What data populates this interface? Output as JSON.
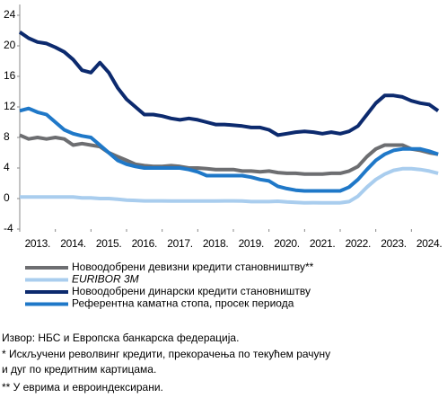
{
  "chart_data": {
    "type": "line",
    "x": [
      2013,
      2013.25,
      2013.5,
      2013.75,
      2014,
      2014.25,
      2014.5,
      2014.75,
      2015,
      2015.25,
      2015.5,
      2015.75,
      2016,
      2016.25,
      2016.5,
      2016.75,
      2017,
      2017.25,
      2017.5,
      2017.75,
      2018,
      2018.25,
      2018.5,
      2018.75,
      2019,
      2019.25,
      2019.5,
      2019.75,
      2020,
      2020.25,
      2020.5,
      2020.75,
      2021,
      2021.25,
      2021.5,
      2021.75,
      2022,
      2022.25,
      2022.5,
      2022.75,
      2023,
      2023.25,
      2023.5,
      2023.75,
      2024,
      2024.25,
      2024.5,
      2024.75
    ],
    "series": [
      {
        "name": "Новоодобрени девизни кредити становништву**",
        "color": "#6d6e71",
        "values": [
          8.3,
          7.8,
          8.0,
          7.8,
          8.0,
          7.8,
          7.0,
          7.2,
          7.0,
          6.8,
          6.0,
          5.5,
          5.0,
          4.5,
          4.3,
          4.2,
          4.2,
          4.3,
          4.2,
          4.0,
          4.0,
          3.9,
          3.8,
          3.8,
          3.8,
          3.6,
          3.6,
          3.5,
          3.6,
          3.4,
          3.3,
          3.3,
          3.2,
          3.2,
          3.2,
          3.3,
          3.3,
          3.6,
          4.2,
          5.5,
          6.5,
          7.0,
          7.0,
          7.0,
          6.5,
          6.3,
          6.0,
          5.8
        ]
      },
      {
        "name": "EURIBOR 3M",
        "color": "#a9cdee",
        "italic": true,
        "values": [
          0.2,
          0.2,
          0.2,
          0.2,
          0.2,
          0.2,
          0.2,
          0.1,
          0.1,
          0.0,
          0.0,
          -0.1,
          -0.2,
          -0.25,
          -0.3,
          -0.3,
          -0.3,
          -0.33,
          -0.33,
          -0.33,
          -0.33,
          -0.32,
          -0.32,
          -0.31,
          -0.31,
          -0.32,
          -0.4,
          -0.4,
          -0.4,
          -0.35,
          -0.45,
          -0.5,
          -0.55,
          -0.54,
          -0.55,
          -0.56,
          -0.55,
          -0.4,
          0.3,
          1.5,
          2.5,
          3.2,
          3.7,
          3.9,
          3.9,
          3.8,
          3.6,
          3.3
        ]
      },
      {
        "name": "Новоодобрени динарски кредити становништву",
        "color": "#0c2a6e",
        "values": [
          21.8,
          21.0,
          20.5,
          20.3,
          19.8,
          19.2,
          18.2,
          16.8,
          16.5,
          17.8,
          16.5,
          14.5,
          13.0,
          12.0,
          11.0,
          11.0,
          10.8,
          10.5,
          10.3,
          10.5,
          10.3,
          10.0,
          9.7,
          9.7,
          9.6,
          9.5,
          9.3,
          9.3,
          9.0,
          8.3,
          8.5,
          8.7,
          8.8,
          8.7,
          8.5,
          8.7,
          8.5,
          8.8,
          9.5,
          11.0,
          12.5,
          13.5,
          13.5,
          13.3,
          12.8,
          12.5,
          12.3,
          11.5
        ]
      },
      {
        "name": "Референтна каматна стопа, просек периода",
        "color": "#1f78c8",
        "values": [
          11.5,
          11.8,
          11.3,
          11.0,
          10.0,
          9.0,
          8.5,
          8.2,
          8.0,
          7.0,
          6.0,
          5.0,
          4.5,
          4.2,
          4.0,
          4.0,
          4.0,
          4.0,
          4.0,
          3.8,
          3.5,
          3.0,
          3.0,
          3.0,
          3.0,
          3.0,
          2.8,
          2.5,
          2.3,
          1.6,
          1.3,
          1.1,
          1.0,
          1.0,
          1.0,
          1.0,
          1.0,
          1.5,
          2.5,
          3.8,
          5.0,
          5.8,
          6.3,
          6.5,
          6.5,
          6.5,
          6.2,
          5.8
        ]
      }
    ],
    "xlim": [
      2013,
      2025
    ],
    "xticks": [
      {
        "value": 2013,
        "label": "2013."
      },
      {
        "value": 2014,
        "label": "2014."
      },
      {
        "value": 2015,
        "label": "2015."
      },
      {
        "value": 2016,
        "label": "2016."
      },
      {
        "value": 2017,
        "label": "2017."
      },
      {
        "value": 2018,
        "label": "2018."
      },
      {
        "value": 2019,
        "label": "2019."
      },
      {
        "value": 2020,
        "label": "2020."
      },
      {
        "value": 2021,
        "label": "2021."
      },
      {
        "value": 2022,
        "label": "2022."
      },
      {
        "value": 2023,
        "label": "2023."
      },
      {
        "value": 2024,
        "label": "2024."
      }
    ],
    "ylim": [
      -4,
      24
    ],
    "yticks": [
      -4,
      0,
      4,
      8,
      12,
      16,
      20,
      24
    ],
    "grid": false,
    "notes": [
      "Извор: НБС и Европска банкарска федерација.",
      "* Искључени револвинг кредити, прекорачења по текућем рачуну",
      "и дуг по кредитним картицама.",
      "** У еврима и евроиндексирани."
    ]
  }
}
